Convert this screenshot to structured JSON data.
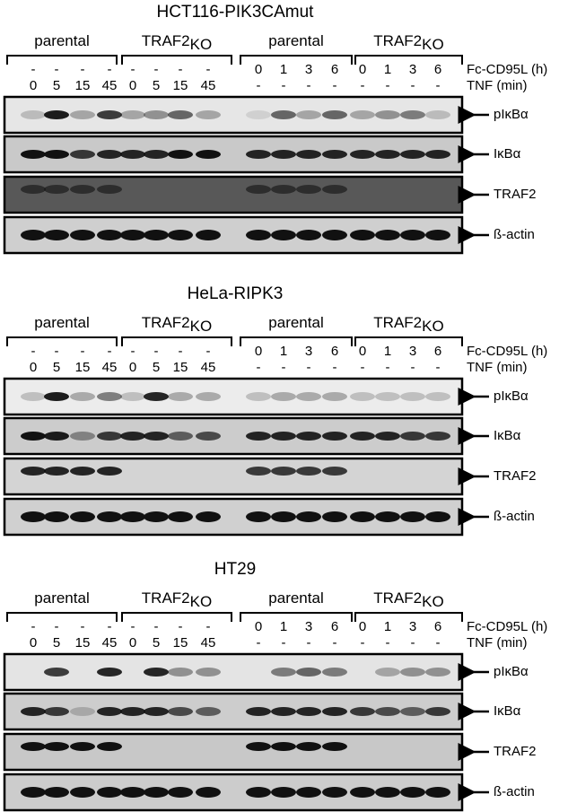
{
  "panels": [
    {
      "title": "HCT116-PIK3CAmut",
      "groups": [
        {
          "label": "parental"
        },
        {
          "label": "TRAF2",
          "suffix": "KO"
        },
        {
          "label": "parental"
        },
        {
          "label": "TRAF2",
          "suffix": "KO"
        }
      ],
      "row_labels": [
        "Fc-CD95L (h)",
        "TNF (min)"
      ],
      "fc_lanes": [
        "-",
        "-",
        "-",
        "-",
        "-",
        "-",
        "-",
        "-",
        "0",
        "1",
        "3",
        "6",
        "0",
        "1",
        "3",
        "6"
      ],
      "tnf_lanes": [
        "0",
        "5",
        "15",
        "45",
        "0",
        "5",
        "15",
        "45",
        "-",
        "-",
        "-",
        "-",
        "-",
        "-",
        "-",
        "-"
      ],
      "blots": [
        "pIκBα",
        "IκBα",
        "TRAF2",
        "ß-actin"
      ]
    },
    {
      "title": "HeLa-RIPK3",
      "groups": [
        {
          "label": "parental"
        },
        {
          "label": "TRAF2",
          "suffix": "KO"
        },
        {
          "label": "parental"
        },
        {
          "label": "TRAF2",
          "suffix": "KO"
        }
      ],
      "row_labels": [
        "Fc-CD95L (h)",
        "TNF (min)"
      ],
      "fc_lanes": [
        "-",
        "-",
        "-",
        "-",
        "-",
        "-",
        "-",
        "-",
        "0",
        "1",
        "3",
        "6",
        "0",
        "1",
        "3",
        "6"
      ],
      "tnf_lanes": [
        "0",
        "5",
        "15",
        "45",
        "0",
        "5",
        "15",
        "45",
        "-",
        "-",
        "-",
        "-",
        "-",
        "-",
        "-",
        "-"
      ],
      "blots": [
        "pIκBα",
        "IκBα",
        "TRAF2",
        "ß-actin"
      ]
    },
    {
      "title": "HT29",
      "groups": [
        {
          "label": "parental"
        },
        {
          "label": "TRAF2",
          "suffix": "KO"
        },
        {
          "label": "parental"
        },
        {
          "label": "TRAF2",
          "suffix": "KO"
        }
      ],
      "row_labels": [
        "Fc-CD95L (h)",
        "TNF (min)"
      ],
      "fc_lanes": [
        "-",
        "-",
        "-",
        "-",
        "-",
        "-",
        "-",
        "-",
        "0",
        "1",
        "3",
        "6",
        "0",
        "1",
        "3",
        "6"
      ],
      "tnf_lanes": [
        "0",
        "5",
        "15",
        "45",
        "0",
        "5",
        "15",
        "45",
        "-",
        "-",
        "-",
        "-",
        "-",
        "-",
        "-",
        "-"
      ],
      "blots": [
        "pIκBα",
        "IκBα",
        "TRAF2",
        "ß-actin"
      ]
    }
  ]
}
